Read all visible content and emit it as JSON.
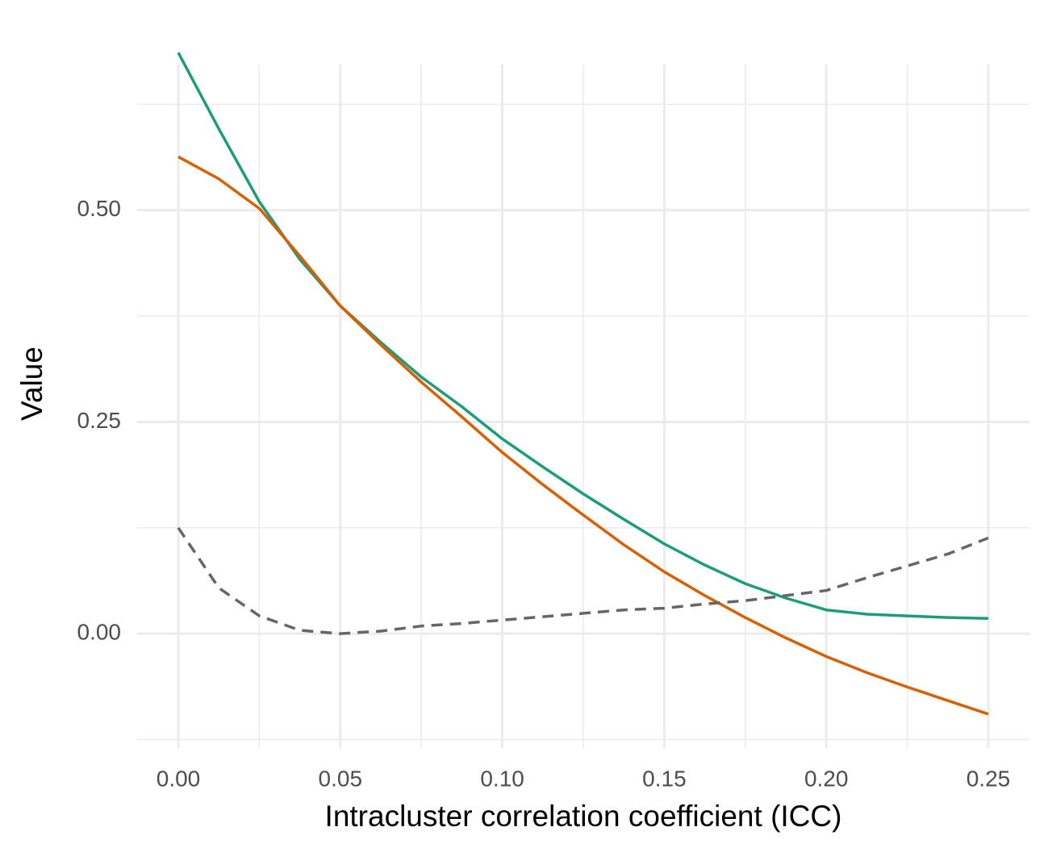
{
  "chart_data": {
    "type": "line",
    "x_label": "Intracluster correlation coefficient (ICC)",
    "y_label": "Value",
    "x": [
      0,
      0.0125,
      0.025,
      0.0375,
      0.05,
      0.0625,
      0.075,
      0.0875,
      0.1,
      0.1125,
      0.125,
      0.1375,
      0.15,
      0.1625,
      0.175,
      0.1875,
      0.2,
      0.2125,
      0.225,
      0.2375,
      0.25
    ],
    "series": [
      {
        "color": "#1b9e77",
        "dash": false,
        "values": [
          0.686,
          0.596,
          0.51,
          0.442,
          0.387,
          0.344,
          0.303,
          0.268,
          0.23,
          0.197,
          0.165,
          0.135,
          0.106,
          0.081,
          0.059,
          0.042,
          0.028,
          0.023,
          0.021,
          0.019,
          0.018
        ]
      },
      {
        "color": "#d95f02",
        "dash": false,
        "values": [
          0.563,
          0.537,
          0.502,
          0.446,
          0.387,
          0.341,
          0.297,
          0.256,
          0.214,
          0.176,
          0.14,
          0.105,
          0.073,
          0.045,
          0.019,
          -0.005,
          -0.027,
          -0.046,
          -0.063,
          -0.079,
          -0.095
        ]
      },
      {
        "color": "#666666",
        "dash": true,
        "values": [
          0.125,
          0.054,
          0.021,
          0.004,
          0.0,
          0.003,
          0.009,
          0.012,
          0.016,
          0.02,
          0.024,
          0.028,
          0.03,
          0.035,
          0.039,
          0.045,
          0.051,
          0.066,
          0.08,
          0.094,
          0.113
        ]
      }
    ],
    "xlim": [
      -0.0127,
      0.2627
    ],
    "ylim": [
      -0.135,
      0.672
    ],
    "xticks": [
      {
        "value": 0,
        "label": "0.00"
      },
      0.05,
      {
        "value": 0.1,
        "label": "0.10"
      },
      0.15,
      {
        "value": 0.2,
        "label": "0.20"
      },
      0.25
    ],
    "yticks": [
      {
        "value": 0,
        "label": "0.00"
      },
      0.25,
      {
        "value": 0.5,
        "label": "0.50"
      }
    ],
    "xminorticks": [
      0.025,
      0.075,
      0.125,
      0.175,
      0.225
    ],
    "yminorticks": [
      -0.125,
      0.125,
      0.375,
      0.625
    ],
    "grid": true
  }
}
